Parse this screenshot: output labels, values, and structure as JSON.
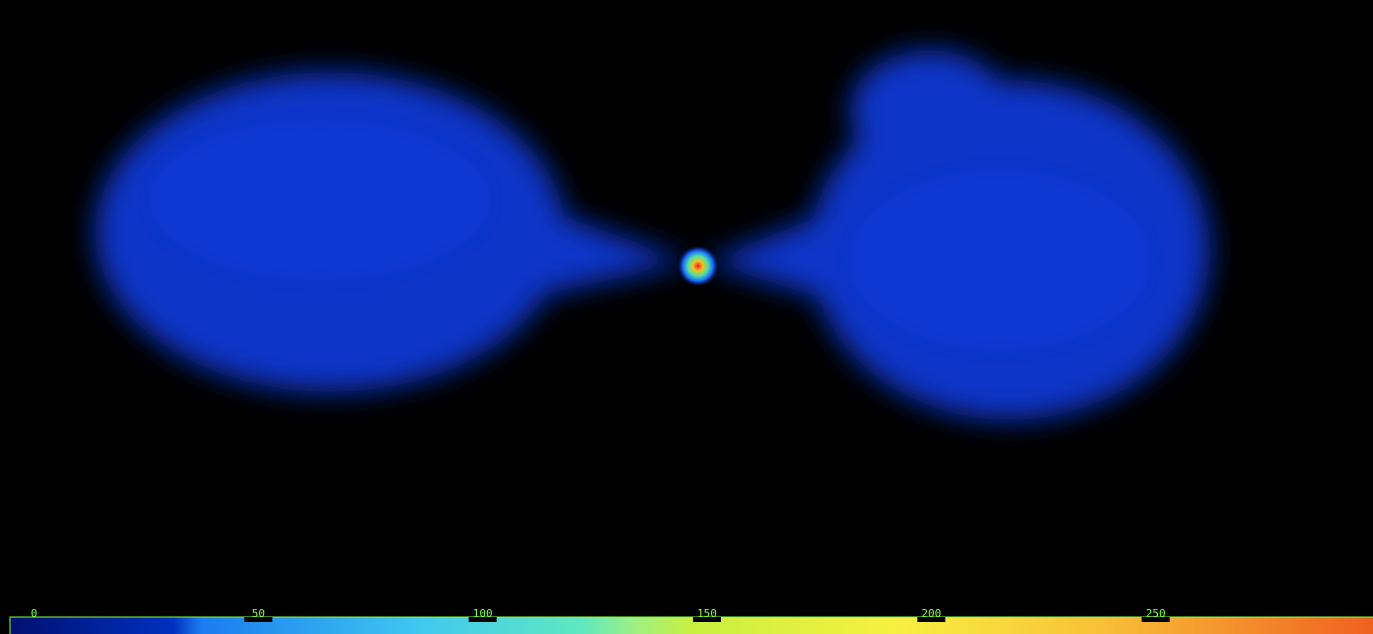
{
  "chart_data": {
    "type": "colorbar",
    "clim": [
      0,
      300
    ],
    "cticks": [
      0,
      50,
      100,
      150,
      200,
      250
    ],
    "color": "#7fff3f"
  }
}
